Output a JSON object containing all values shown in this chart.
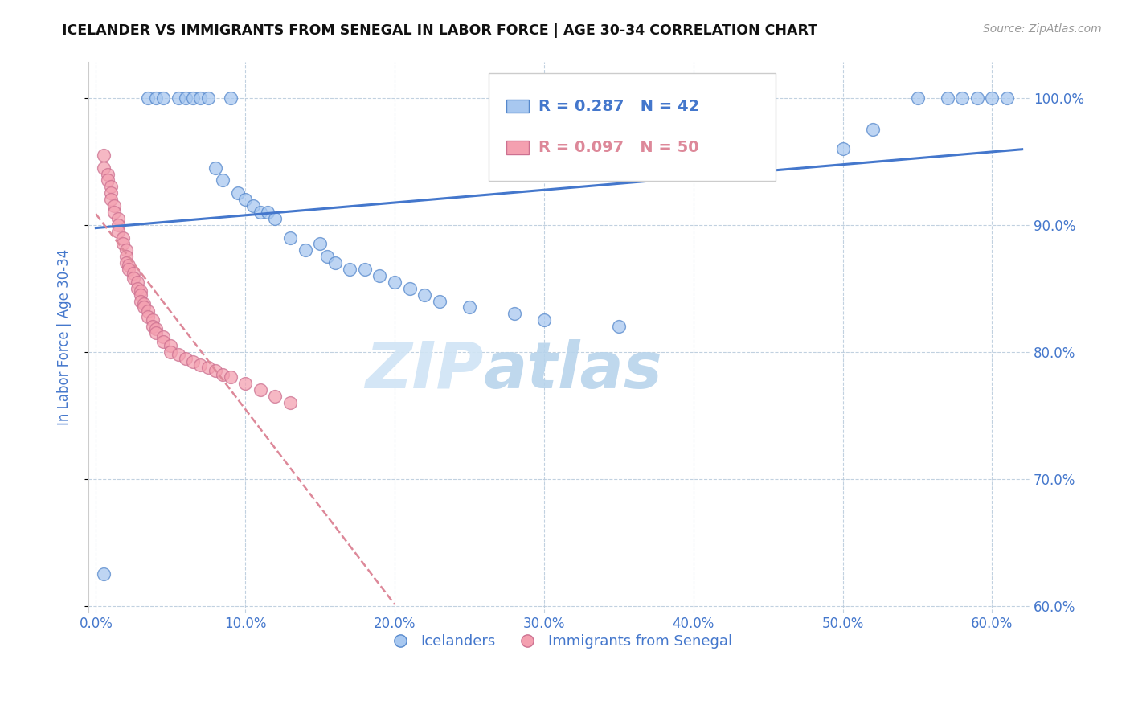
{
  "title": "ICELANDER VS IMMIGRANTS FROM SENEGAL IN LABOR FORCE | AGE 30-34 CORRELATION CHART",
  "source": "Source: ZipAtlas.com",
  "ylabel": "In Labor Force | Age 30-34",
  "watermark_zip": "ZIP",
  "watermark_atlas": "atlas",
  "legend_blue_label": "Icelanders",
  "legend_pink_label": "Immigrants from Senegal",
  "R_blue": 0.287,
  "N_blue": 42,
  "R_pink": 0.097,
  "N_pink": 50,
  "xlim": [
    -0.005,
    0.625
  ],
  "ylim": [
    0.595,
    1.028
  ],
  "yticks": [
    0.6,
    0.7,
    0.8,
    0.9,
    1.0
  ],
  "xticks": [
    0.0,
    0.1,
    0.2,
    0.3,
    0.4,
    0.5,
    0.6
  ],
  "blue_fill": "#A8C8F0",
  "blue_edge": "#5588CC",
  "pink_fill": "#F4A0B0",
  "pink_edge": "#CC7090",
  "blue_line_color": "#4477CC",
  "pink_line_color": "#DD8899",
  "axis_color": "#4477CC",
  "grid_color": "#BBCCDD",
  "title_color": "#111111",
  "blue_scatter_x": [
    0.005,
    0.035,
    0.04,
    0.045,
    0.055,
    0.06,
    0.065,
    0.07,
    0.075,
    0.08,
    0.085,
    0.09,
    0.095,
    0.1,
    0.105,
    0.11,
    0.115,
    0.12,
    0.13,
    0.14,
    0.15,
    0.155,
    0.16,
    0.17,
    0.18,
    0.19,
    0.2,
    0.21,
    0.22,
    0.23,
    0.25,
    0.28,
    0.3,
    0.35,
    0.5,
    0.52,
    0.55,
    0.57,
    0.58,
    0.59,
    0.6,
    0.61
  ],
  "blue_scatter_y": [
    0.625,
    1.0,
    1.0,
    1.0,
    1.0,
    1.0,
    1.0,
    1.0,
    1.0,
    0.945,
    0.935,
    1.0,
    0.925,
    0.92,
    0.915,
    0.91,
    0.91,
    0.905,
    0.89,
    0.88,
    0.885,
    0.875,
    0.87,
    0.865,
    0.865,
    0.86,
    0.855,
    0.85,
    0.845,
    0.84,
    0.835,
    0.83,
    0.825,
    0.82,
    0.96,
    0.975,
    1.0,
    1.0,
    1.0,
    1.0,
    1.0,
    1.0
  ],
  "pink_scatter_x": [
    0.005,
    0.005,
    0.008,
    0.008,
    0.01,
    0.01,
    0.01,
    0.012,
    0.012,
    0.015,
    0.015,
    0.015,
    0.018,
    0.018,
    0.02,
    0.02,
    0.02,
    0.022,
    0.022,
    0.025,
    0.025,
    0.028,
    0.028,
    0.03,
    0.03,
    0.03,
    0.032,
    0.032,
    0.035,
    0.035,
    0.038,
    0.038,
    0.04,
    0.04,
    0.045,
    0.045,
    0.05,
    0.05,
    0.055,
    0.06,
    0.065,
    0.07,
    0.075,
    0.08,
    0.085,
    0.09,
    0.1,
    0.11,
    0.12,
    0.13
  ],
  "pink_scatter_y": [
    0.955,
    0.945,
    0.94,
    0.935,
    0.93,
    0.925,
    0.92,
    0.915,
    0.91,
    0.905,
    0.9,
    0.895,
    0.89,
    0.885,
    0.88,
    0.875,
    0.87,
    0.868,
    0.865,
    0.862,
    0.858,
    0.855,
    0.85,
    0.848,
    0.845,
    0.84,
    0.838,
    0.835,
    0.832,
    0.828,
    0.825,
    0.82,
    0.818,
    0.815,
    0.812,
    0.808,
    0.805,
    0.8,
    0.798,
    0.795,
    0.792,
    0.79,
    0.788,
    0.785,
    0.782,
    0.78,
    0.775,
    0.77,
    0.765,
    0.76
  ],
  "figsize": [
    14.06,
    8.92
  ],
  "dpi": 100
}
